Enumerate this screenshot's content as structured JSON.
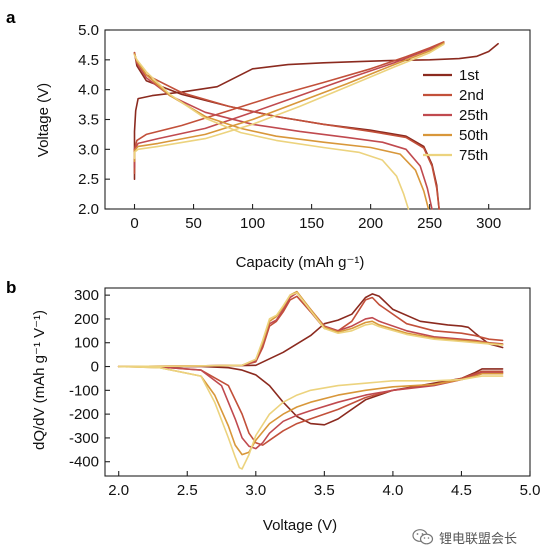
{
  "panels": [
    {
      "label": "a"
    },
    {
      "label": "b"
    }
  ],
  "chart_data": [
    {
      "type": "line",
      "panel": "a",
      "title": "",
      "xlabel": "Capacity (mAh g⁻¹)",
      "ylabel": "Voltage (V)",
      "xlim": [
        -25,
        335
      ],
      "ylim": [
        2.0,
        5.0
      ],
      "xticks": [
        0,
        50,
        100,
        150,
        200,
        250,
        300
      ],
      "yticks": [
        2.0,
        2.5,
        3.0,
        3.5,
        4.0,
        4.5,
        5.0
      ],
      "ytick_labels": [
        "2.0",
        "2.5",
        "3.0",
        "3.5",
        "4.0",
        "4.5",
        "5.0"
      ],
      "legend_position": "right",
      "series": [
        {
          "name": "1st",
          "color": "#8b2a1f",
          "charge": {
            "x": [
              0,
              0,
              1,
              3,
              15,
              40,
              70,
              100,
              130,
              160,
              190,
              220,
              250,
              275,
              290,
              300,
              308
            ],
            "y": [
              2.5,
              3.3,
              3.65,
              3.85,
              3.9,
              3.96,
              4.05,
              4.35,
              4.42,
              4.45,
              4.47,
              4.49,
              4.5,
              4.52,
              4.56,
              4.64,
              4.77
            ]
          },
          "discharge": {
            "x": [
              0,
              2,
              10,
              40,
              80,
              120,
              160,
              200,
              230,
              245,
              252,
              256,
              258
            ],
            "y": [
              4.62,
              4.4,
              4.15,
              3.92,
              3.72,
              3.55,
              3.42,
              3.32,
              3.22,
              3.05,
              2.75,
              2.4,
              2.0
            ]
          }
        },
        {
          "name": "2nd",
          "color": "#c2503a",
          "charge": {
            "x": [
              0,
              0,
              2,
              10,
              40,
              80,
              120,
              160,
              200,
              230,
              250,
              262
            ],
            "y": [
              2.6,
              3.0,
              3.15,
              3.25,
              3.4,
              3.65,
              3.9,
              4.12,
              4.35,
              4.55,
              4.7,
              4.8
            ]
          },
          "discharge": {
            "x": [
              0,
              2,
              10,
              40,
              80,
              120,
              160,
              200,
              230,
              245,
              252,
              256,
              258
            ],
            "y": [
              4.62,
              4.45,
              4.25,
              3.95,
              3.72,
              3.55,
              3.42,
              3.3,
              3.2,
              3.02,
              2.72,
              2.35,
              2.0
            ]
          }
        },
        {
          "name": "25th",
          "color": "#c04a4f",
          "charge": {
            "x": [
              0,
              0,
              3,
              20,
              60,
              100,
              140,
              180,
              220,
              250,
              262
            ],
            "y": [
              2.7,
              3.0,
              3.1,
              3.18,
              3.35,
              3.62,
              3.9,
              4.18,
              4.45,
              4.68,
              4.78
            ]
          },
          "discharge": {
            "x": [
              0,
              2,
              10,
              30,
              60,
              100,
              140,
              180,
              210,
              230,
              242,
              248,
              252
            ],
            "y": [
              4.6,
              4.45,
              4.2,
              3.9,
              3.62,
              3.42,
              3.3,
              3.2,
              3.12,
              3.0,
              2.72,
              2.35,
              2.0
            ]
          }
        },
        {
          "name": "50th",
          "color": "#d8973a",
          "charge": {
            "x": [
              0,
              0,
              3,
              20,
              60,
              100,
              140,
              180,
              220,
              250,
              262
            ],
            "y": [
              2.8,
              2.98,
              3.05,
              3.1,
              3.25,
              3.5,
              3.8,
              4.1,
              4.42,
              4.65,
              4.78
            ]
          },
          "discharge": {
            "x": [
              0,
              2,
              10,
              30,
              60,
              90,
              120,
              160,
              200,
              225,
              238,
              245,
              249
            ],
            "y": [
              4.6,
              4.48,
              4.25,
              3.9,
              3.55,
              3.35,
              3.22,
              3.12,
              3.03,
              2.92,
              2.65,
              2.3,
              2.0
            ]
          }
        },
        {
          "name": "75th",
          "color": "#ecd37e",
          "charge": {
            "x": [
              0,
              0,
              3,
              20,
              60,
              100,
              140,
              180,
              220,
              250,
              262
            ],
            "y": [
              2.85,
              2.95,
              3.0,
              3.05,
              3.18,
              3.42,
              3.72,
              4.05,
              4.38,
              4.62,
              4.76
            ]
          },
          "discharge": {
            "x": [
              0,
              2,
              10,
              30,
              60,
              90,
              120,
              160,
              190,
              210,
              222,
              228,
              232
            ],
            "y": [
              4.58,
              4.5,
              4.3,
              3.92,
              3.52,
              3.28,
              3.15,
              3.03,
              2.95,
              2.82,
              2.55,
              2.25,
              2.0
            ]
          }
        }
      ]
    },
    {
      "type": "line",
      "panel": "b",
      "title": "",
      "xlabel": "Voltage (V)",
      "ylabel": "dQ/dV (mAh g⁻¹ V⁻¹)",
      "xlim": [
        1.9,
        5.0
      ],
      "ylim": [
        -460,
        330
      ],
      "xticks": [
        2.0,
        2.5,
        3.0,
        3.5,
        4.0,
        4.5,
        5.0
      ],
      "xtick_labels": [
        "2.0",
        "2.5",
        "3.0",
        "3.5",
        "4.0",
        "4.5",
        "5.0"
      ],
      "yticks": [
        300,
        200,
        100,
        0,
        -100,
        -200,
        -300,
        -400
      ],
      "series": [
        {
          "name": "1st",
          "color": "#8b2a1f",
          "charge": {
            "x": [
              2.0,
              2.5,
              3.0,
              3.2,
              3.4,
              3.5,
              3.6,
              3.7,
              3.8,
              3.85,
              3.9,
              4.0,
              4.2,
              4.4,
              4.5,
              4.55,
              4.6,
              4.7,
              4.8
            ],
            "y": [
              0,
              0,
              5,
              60,
              130,
              180,
              195,
              220,
              290,
              305,
              295,
              240,
              190,
              175,
              170,
              165,
              140,
              95,
              80
            ]
          },
          "discharge": {
            "x": [
              4.8,
              4.65,
              4.6,
              4.5,
              4.3,
              4.0,
              3.8,
              3.6,
              3.5,
              3.4,
              3.3,
              3.2,
              3.1,
              3.0,
              2.9,
              2.8,
              2.6,
              2.3,
              2.0
            ],
            "y": [
              -10,
              -10,
              -25,
              -50,
              -70,
              -100,
              -140,
              -220,
              -245,
              -240,
              -210,
              -150,
              -80,
              -35,
              -15,
              -5,
              0,
              0,
              0
            ]
          }
        },
        {
          "name": "2nd",
          "color": "#c2503a",
          "charge": {
            "x": [
              2.0,
              2.5,
              2.9,
              3.0,
              3.05,
              3.1,
              3.15,
              3.2,
              3.25,
              3.3,
              3.4,
              3.5,
              3.6,
              3.7,
              3.8,
              3.85,
              3.9,
              4.1,
              4.3,
              4.5,
              4.6,
              4.7,
              4.8
            ],
            "y": [
              0,
              2,
              5,
              20,
              80,
              170,
              190,
              230,
              280,
              295,
              230,
              160,
              150,
              190,
              280,
              290,
              260,
              180,
              150,
              140,
              130,
              115,
              110
            ]
          },
          "discharge": {
            "x": [
              4.8,
              4.65,
              4.6,
              4.5,
              4.3,
              4.0,
              3.8,
              3.6,
              3.4,
              3.3,
              3.2,
              3.1,
              3.05,
              3.0,
              2.95,
              2.9,
              2.8,
              2.6,
              2.3,
              2.0
            ],
            "y": [
              -20,
              -20,
              -30,
              -50,
              -75,
              -100,
              -130,
              -180,
              -220,
              -240,
              -270,
              -310,
              -330,
              -320,
              -280,
              -200,
              -80,
              -15,
              -2,
              0
            ]
          }
        },
        {
          "name": "25th",
          "color": "#c04a4f",
          "charge": {
            "x": [
              2.0,
              2.5,
              2.9,
              3.0,
              3.05,
              3.1,
              3.15,
              3.2,
              3.25,
              3.3,
              3.4,
              3.5,
              3.6,
              3.7,
              3.8,
              3.85,
              3.9,
              4.1,
              4.3,
              4.5,
              4.6,
              4.7,
              4.8
            ],
            "y": [
              0,
              2,
              5,
              25,
              90,
              180,
              195,
              240,
              290,
              310,
              240,
              170,
              150,
              170,
              200,
              205,
              190,
              150,
              125,
              115,
              110,
              100,
              95
            ]
          },
          "discharge": {
            "x": [
              4.8,
              4.65,
              4.6,
              4.5,
              4.3,
              4.0,
              3.8,
              3.6,
              3.4,
              3.3,
              3.2,
              3.1,
              3.05,
              3.0,
              2.95,
              2.9,
              2.85,
              2.75,
              2.6,
              2.3,
              2.0
            ],
            "y": [
              -25,
              -25,
              -35,
              -55,
              -80,
              -100,
              -120,
              -150,
              -185,
              -205,
              -230,
              -280,
              -320,
              -345,
              -335,
              -300,
              -220,
              -80,
              -15,
              -2,
              0
            ]
          }
        },
        {
          "name": "50th",
          "color": "#d8973a",
          "charge": {
            "x": [
              2.0,
              2.5,
              2.9,
              3.0,
              3.05,
              3.1,
              3.15,
              3.2,
              3.25,
              3.3,
              3.4,
              3.5,
              3.6,
              3.7,
              3.8,
              3.85,
              3.9,
              4.1,
              4.3,
              4.5,
              4.6,
              4.7,
              4.8
            ],
            "y": [
              0,
              2,
              5,
              30,
              100,
              190,
              210,
              250,
              300,
              315,
              240,
              165,
              145,
              160,
              185,
              190,
              175,
              140,
              120,
              110,
              105,
              98,
              92
            ]
          },
          "discharge": {
            "x": [
              4.8,
              4.65,
              4.6,
              4.5,
              4.3,
              4.0,
              3.8,
              3.6,
              3.4,
              3.3,
              3.2,
              3.1,
              3.0,
              2.95,
              2.9,
              2.85,
              2.8,
              2.7,
              2.6,
              2.3,
              2.0
            ],
            "y": [
              -30,
              -30,
              -40,
              -55,
              -75,
              -85,
              -100,
              -120,
              -150,
              -170,
              -200,
              -240,
              -310,
              -360,
              -370,
              -330,
              -250,
              -120,
              -40,
              -5,
              0
            ]
          }
        },
        {
          "name": "75th",
          "color": "#ecd37e",
          "charge": {
            "x": [
              2.0,
              2.5,
              2.9,
              3.0,
              3.05,
              3.1,
              3.15,
              3.2,
              3.25,
              3.3,
              3.4,
              3.5,
              3.6,
              3.7,
              3.8,
              3.85,
              3.9,
              4.1,
              4.3,
              4.5,
              4.6,
              4.7,
              4.8
            ],
            "y": [
              0,
              2,
              5,
              30,
              110,
              200,
              215,
              255,
              300,
              310,
              235,
              160,
              140,
              150,
              175,
              180,
              168,
              135,
              115,
              105,
              100,
              95,
              90
            ]
          },
          "discharge": {
            "x": [
              4.8,
              4.65,
              4.6,
              4.5,
              4.3,
              4.0,
              3.8,
              3.6,
              3.4,
              3.3,
              3.2,
              3.1,
              3.0,
              2.95,
              2.9,
              2.88,
              2.85,
              2.8,
              2.7,
              2.6,
              2.3,
              2.0
            ],
            "y": [
              -40,
              -40,
              -45,
              -55,
              -60,
              -60,
              -70,
              -80,
              -100,
              -120,
              -150,
              -200,
              -290,
              -370,
              -430,
              -425,
              -380,
              -300,
              -150,
              -40,
              -5,
              0
            ]
          }
        }
      ]
    }
  ],
  "watermark": {
    "text": "锂电联盟会长",
    "icon": "wechat-icon"
  }
}
